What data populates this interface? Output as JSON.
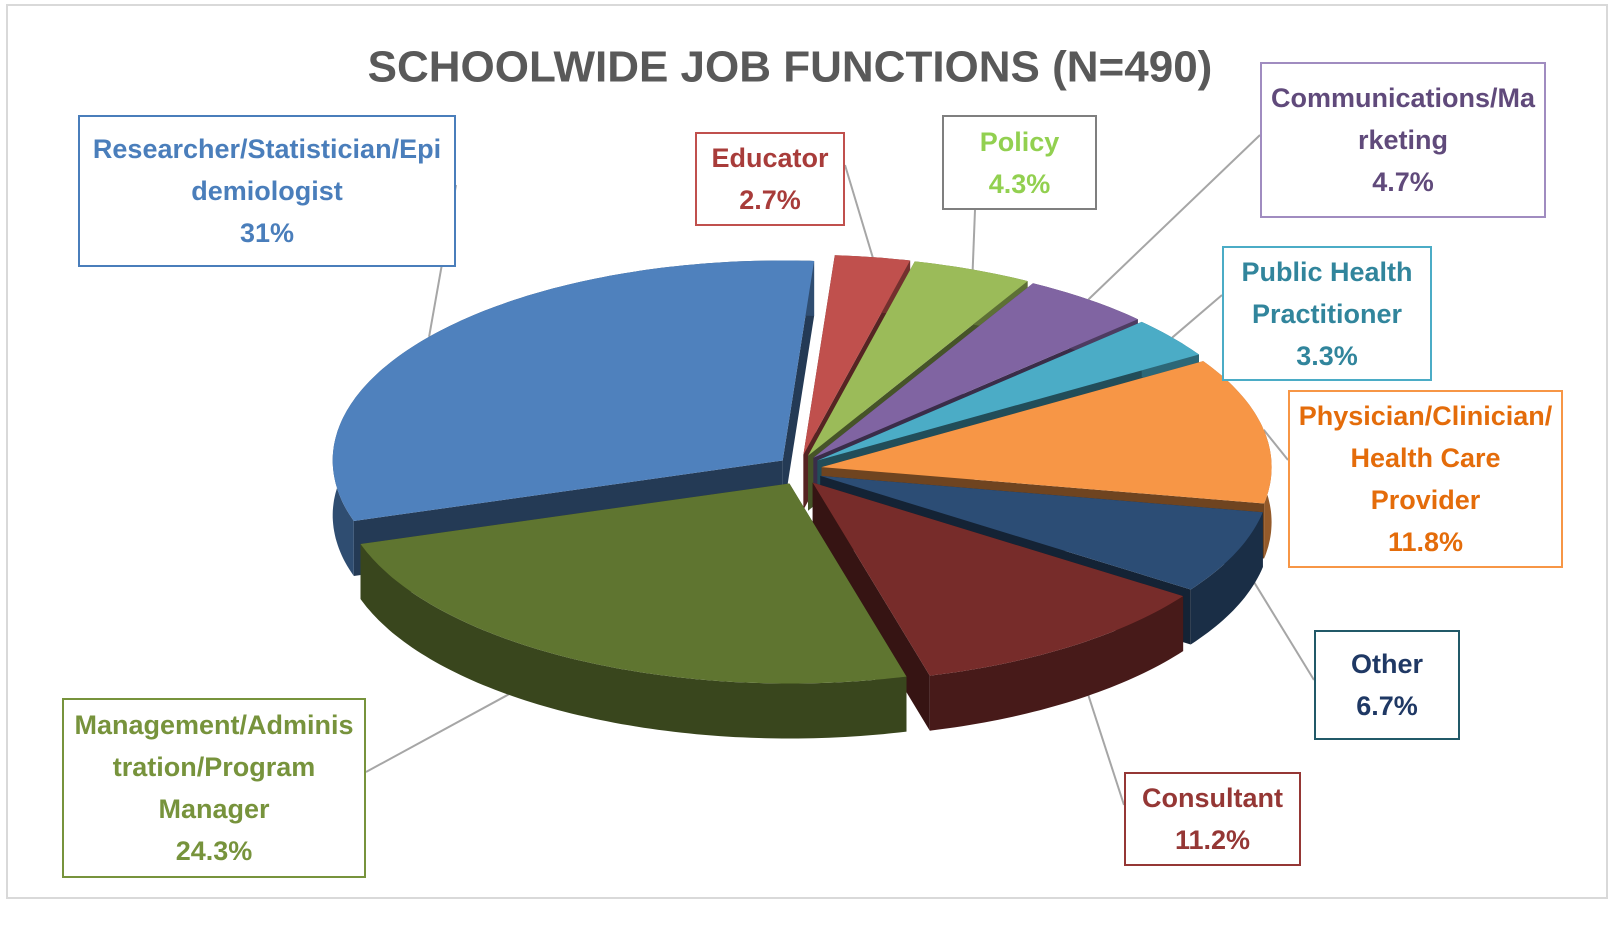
{
  "chart_data": {
    "type": "pie",
    "title": "SCHOOLWIDE JOB FUNCTIONS (N=490)",
    "categories": [
      "Educator",
      "Policy",
      "Communications/Marketing",
      "Public Health Practitioner",
      "Physician/Clinician/Health Care Provider",
      "Other",
      "Consultant",
      "Management/Administration/Program Manager",
      "Researcher/Statistician/Epidemiologist"
    ],
    "values": [
      2.7,
      4.3,
      4.7,
      3.3,
      11.8,
      6.7,
      11.2,
      24.3,
      31
    ],
    "value_labels": [
      "2.7%",
      "4.3%",
      "4.7%",
      "3.3%",
      "11.8%",
      "6.7%",
      "11.2%",
      "24.3%",
      "31%"
    ],
    "colors": [
      "#c0504d",
      "#9bbb59",
      "#8064a2",
      "#4bacc6",
      "#f79646",
      "#2c4d75",
      "#772c2a",
      "#5f7530",
      "#4f81bd"
    ]
  }
}
